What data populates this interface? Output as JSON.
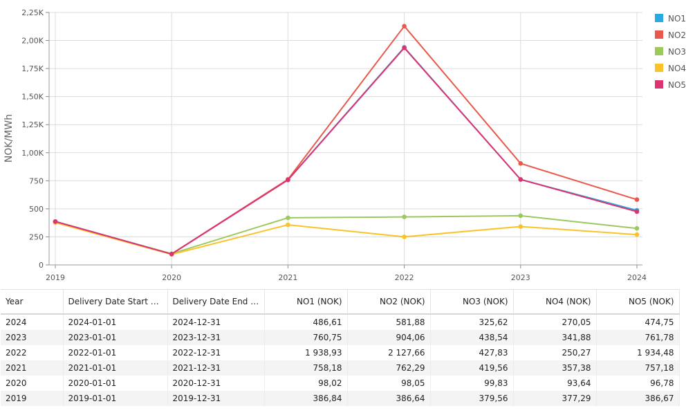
{
  "chart_data": {
    "type": "line",
    "ylabel": "NOK/MWh",
    "ylim": [
      0,
      2250
    ],
    "y_ticks": [
      "0",
      "250",
      "500",
      "750",
      "1,00K",
      "1,25K",
      "1,50K",
      "1,75K",
      "2,00K",
      "2,25K"
    ],
    "x": [
      "2019",
      "2020",
      "2021",
      "2022",
      "2023",
      "2024"
    ],
    "legend_position": "right",
    "series": [
      {
        "name": "NO1",
        "color": "#29abe2",
        "values": [
          386.84,
          98.02,
          758.18,
          1938.93,
          760.75,
          486.61
        ]
      },
      {
        "name": "NO2",
        "color": "#e9594b",
        "values": [
          386.64,
          98.05,
          762.29,
          2127.66,
          904.06,
          581.88
        ]
      },
      {
        "name": "NO3",
        "color": "#9bc95d",
        "values": [
          379.56,
          99.83,
          419.56,
          427.83,
          438.54,
          325.62
        ]
      },
      {
        "name": "NO4",
        "color": "#fbc32a",
        "values": [
          377.29,
          93.64,
          357.38,
          250.27,
          341.88,
          270.05
        ]
      },
      {
        "name": "NO5",
        "color": "#dc3372",
        "values": [
          386.67,
          96.78,
          757.18,
          1934.48,
          761.78,
          474.75
        ]
      }
    ]
  },
  "table": {
    "headers": [
      "Year",
      "Delivery Date Start CET",
      "Delivery Date End C...",
      "NO1 (NOK)",
      "NO2 (NOK)",
      "NO3 (NOK)",
      "NO4 (NOK)",
      "NO5 (NOK)"
    ],
    "rows": [
      [
        "2024",
        "2024-01-01",
        "2024-12-31",
        "486,61",
        "581,88",
        "325,62",
        "270,05",
        "474,75"
      ],
      [
        "2023",
        "2023-01-01",
        "2023-12-31",
        "760,75",
        "904,06",
        "438,54",
        "341,88",
        "761,78"
      ],
      [
        "2022",
        "2022-01-01",
        "2022-12-31",
        "1 938,93",
        "2 127,66",
        "427,83",
        "250,27",
        "1 934,48"
      ],
      [
        "2021",
        "2021-01-01",
        "2021-12-31",
        "758,18",
        "762,29",
        "419,56",
        "357,38",
        "757,18"
      ],
      [
        "2020",
        "2020-01-01",
        "2020-12-31",
        "98,02",
        "98,05",
        "99,83",
        "93,64",
        "96,78"
      ],
      [
        "2019",
        "2019-01-01",
        "2019-12-31",
        "386,84",
        "386,64",
        "379,56",
        "377,29",
        "386,67"
      ]
    ]
  }
}
